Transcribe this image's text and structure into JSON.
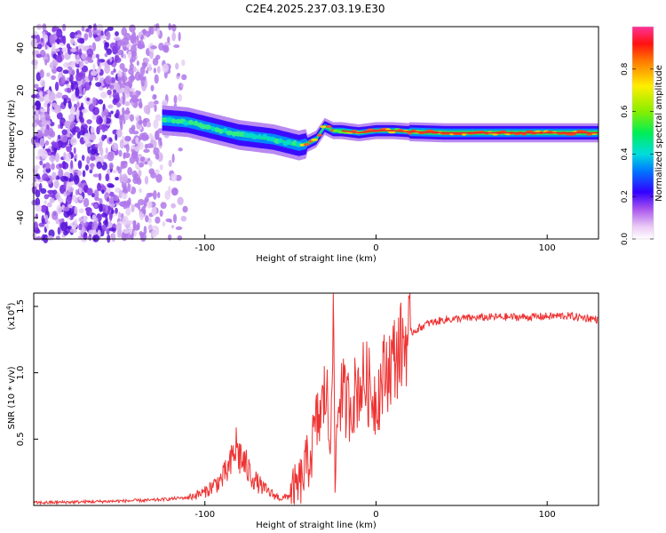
{
  "title": "C2E4.2025.237.03.19.E30",
  "chart_data": [
    {
      "type": "heatmap",
      "name": "spectrogram",
      "xlabel": "Height of straight line (km)",
      "ylabel": "Frequency (Hz)",
      "xlim": [
        -200,
        130
      ],
      "ylim": [
        -50,
        50
      ],
      "xticks": [
        -100,
        0,
        100
      ],
      "yticks": [
        -40,
        -20,
        0,
        20,
        40
      ],
      "colorbar": {
        "label": "Normalized spectral amplitude",
        "range": [
          0.0,
          1.0
        ],
        "ticks": [
          0.0,
          0.2,
          0.4,
          0.6,
          0.8
        ]
      },
      "ridge": {
        "x": [
          -125,
          -110,
          -100,
          -90,
          -80,
          -70,
          -60,
          -50,
          -45,
          -40,
          -35,
          -30,
          -25,
          -20,
          -10,
          0,
          10,
          20,
          40,
          60,
          80,
          100,
          130
        ],
        "y": [
          6,
          5,
          3,
          1,
          -1,
          -2,
          -3,
          -5,
          -6,
          -5,
          -3,
          3,
          1,
          1,
          0,
          1,
          1,
          0.5,
          0,
          0,
          0,
          0,
          0
        ]
      },
      "noise_region_x": [
        -200,
        -110
      ]
    },
    {
      "type": "line",
      "name": "snr",
      "xlabel": "Height of straight line (km)",
      "ylabel": "SNR (10 * v/v)",
      "multiplier": "(x10",
      "multiplier_exp": "4",
      "multiplier_close": ")",
      "xlim": [
        -200,
        130
      ],
      "ylim": [
        0,
        1.6
      ],
      "xticks": [
        -100,
        0,
        100
      ],
      "yticks": [
        0.5,
        1.0,
        1.5
      ],
      "ytick_labels": [
        "0.5",
        "1.0",
        "1.5"
      ],
      "color": "#ee3333",
      "series": [
        {
          "name": "SNR",
          "x": [
            -200,
            -160,
            -130,
            -110,
            -100,
            -95,
            -90,
            -85,
            -82,
            -80,
            -77,
            -74,
            -70,
            -65,
            -60,
            -55,
            -50,
            -45,
            -42,
            -38,
            -35,
            -32,
            -29,
            -27,
            -25,
            -24,
            -23,
            -22,
            -20,
            -17,
            -14,
            -10,
            -6,
            -3,
            0,
            5,
            10,
            15,
            20,
            30,
            40,
            50,
            70,
            90,
            110,
            125,
            130
          ],
          "y": [
            0.02,
            0.03,
            0.04,
            0.06,
            0.1,
            0.15,
            0.2,
            0.3,
            0.45,
            0.38,
            0.32,
            0.25,
            0.18,
            0.12,
            0.08,
            0.05,
            0.08,
            0.15,
            0.25,
            0.4,
            0.6,
            0.7,
            0.9,
            0.4,
            1.6,
            0.15,
            0.5,
            0.8,
            0.85,
            0.75,
            0.8,
            0.9,
            0.95,
            0.85,
            0.8,
            1.0,
            1.1,
            1.2,
            1.3,
            1.37,
            1.4,
            1.41,
            1.42,
            1.42,
            1.43,
            1.41,
            1.4
          ]
        }
      ]
    }
  ]
}
